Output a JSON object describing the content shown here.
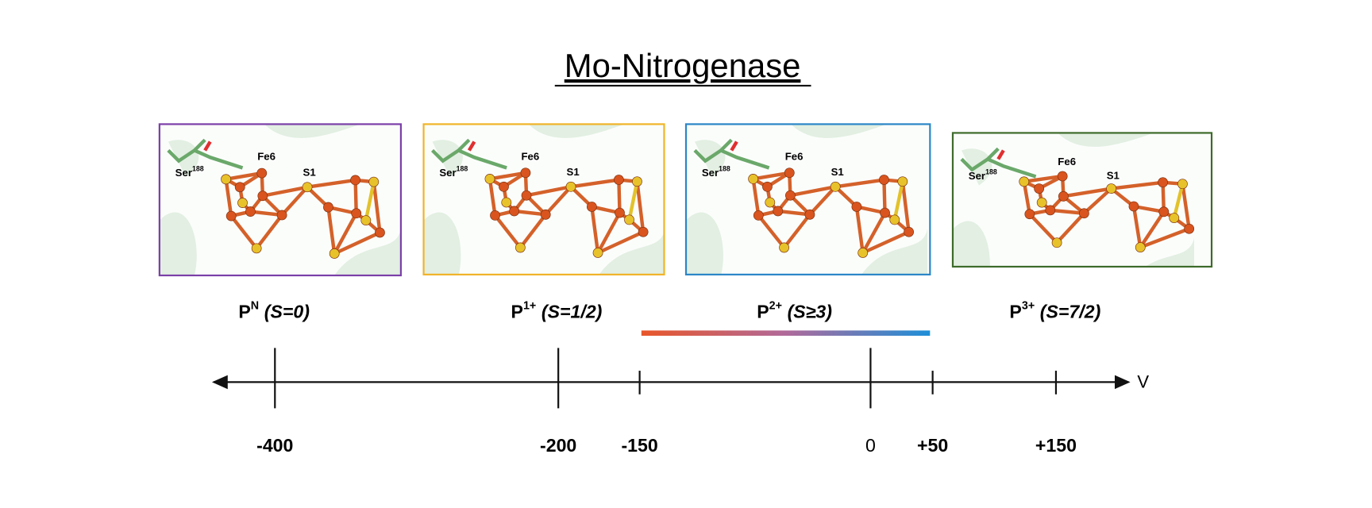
{
  "title": "Mo-Nitrogenase",
  "panels": [
    {
      "residue": "Ser",
      "residue_number": "188",
      "iron_label": "Fe6",
      "sulfur_label": "S1"
    },
    {
      "residue": "Ser",
      "residue_number": "188",
      "iron_label": "Fe6",
      "sulfur_label": "S1"
    },
    {
      "residue": "Ser",
      "residue_number": "188",
      "iron_label": "Fe6",
      "sulfur_label": "S1"
    },
    {
      "residue": "Ser",
      "residue_number": "188",
      "iron_label": "Fe6",
      "sulfur_label": "S1"
    }
  ],
  "states": [
    {
      "symbol": "P",
      "charge": "N",
      "spin": "(S=0)"
    },
    {
      "symbol": "P",
      "charge": "1+",
      "spin": "(S=1/2)"
    },
    {
      "symbol": "P",
      "charge": "2+",
      "spin": "(S≥3)"
    },
    {
      "symbol": "P",
      "charge": "3+",
      "spin": "(S=7/2)"
    }
  ],
  "axis": {
    "unit": "V",
    "ticks": [
      "-400",
      "-200",
      "-150",
      "0",
      "+50",
      "+150"
    ]
  }
}
